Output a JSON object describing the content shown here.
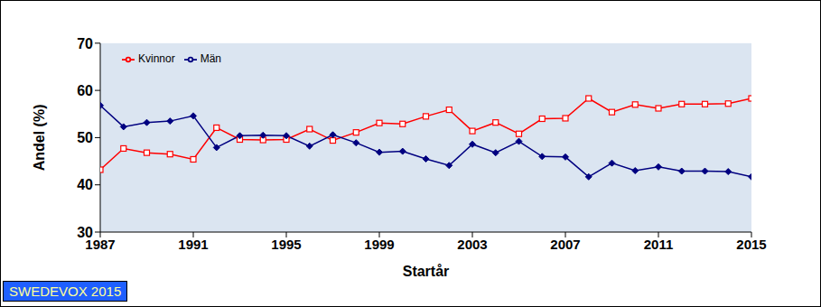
{
  "chart_data": {
    "type": "line",
    "x_label": "Startår",
    "y_label": "Andel (%)",
    "annotation": "SWEDEVOX 2015",
    "x": [
      1987,
      1988,
      1989,
      1990,
      1991,
      1992,
      1993,
      1994,
      1995,
      1996,
      1997,
      1998,
      1999,
      2000,
      2001,
      2002,
      2003,
      2004,
      2005,
      2006,
      2007,
      2008,
      2009,
      2010,
      2011,
      2012,
      2013,
      2014,
      2015
    ],
    "series": [
      {
        "name": "Kvinnor",
        "color": "#ff0000",
        "marker": "square",
        "values": [
          43.2,
          47.7,
          46.8,
          46.5,
          45.4,
          52.1,
          49.6,
          49.5,
          49.6,
          51.8,
          49.4,
          51.1,
          53.1,
          52.9,
          54.5,
          55.9,
          51.4,
          53.2,
          50.8,
          54.0,
          54.1,
          58.3,
          55.4,
          57.0,
          56.2,
          57.1,
          57.1,
          57.2,
          58.3
        ]
      },
      {
        "name": "Män",
        "color": "#000080",
        "marker": "diamond",
        "values": [
          56.8,
          52.3,
          53.2,
          53.5,
          54.6,
          47.9,
          50.4,
          50.5,
          50.4,
          48.2,
          50.6,
          48.9,
          46.9,
          47.1,
          45.5,
          44.1,
          48.6,
          46.8,
          49.2,
          46.0,
          45.9,
          41.7,
          44.6,
          43.0,
          43.8,
          42.9,
          42.9,
          42.8,
          41.7
        ]
      }
    ],
    "xlim": [
      1987,
      2015
    ],
    "xticks": [
      1987,
      1991,
      1995,
      1999,
      2003,
      2007,
      2011,
      2015
    ],
    "ylim": [
      30,
      70
    ],
    "yticks": [
      30,
      40,
      50,
      60,
      70
    ],
    "grid": false,
    "legend": "upper left"
  }
}
